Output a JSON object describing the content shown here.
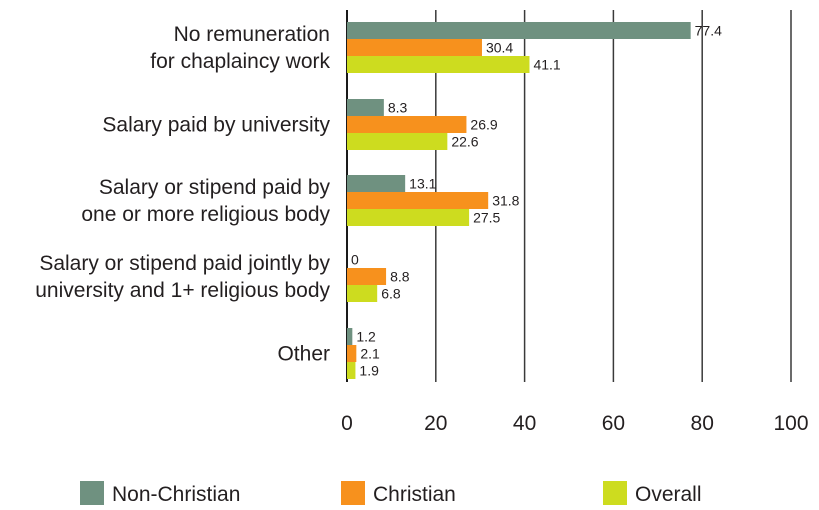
{
  "chart_data": {
    "type": "bar",
    "orientation": "horizontal",
    "categories": [
      [
        "No remuneration",
        "for chaplaincy work"
      ],
      [
        "Salary paid by university"
      ],
      [
        "Salary or stipend paid by",
        "one or more religious body"
      ],
      [
        "Salary or stipend paid jointly by",
        "university and 1+ religious body"
      ],
      [
        "Other"
      ]
    ],
    "series": [
      {
        "name": "Non-Christian",
        "color": "#6f9180",
        "values": [
          77.4,
          8.3,
          13.1,
          0,
          1.2
        ]
      },
      {
        "name": "Christian",
        "color": "#f7911d",
        "values": [
          30.4,
          26.9,
          31.8,
          8.8,
          2.1
        ]
      },
      {
        "name": "Overall",
        "color": "#cddc1f",
        "values": [
          41.1,
          22.6,
          27.5,
          6.8,
          1.9
        ]
      }
    ],
    "xlim": [
      0,
      100
    ],
    "xticks": [
      0,
      20,
      40,
      60,
      80,
      100
    ],
    "grid": true,
    "legend_position": "bottom"
  }
}
